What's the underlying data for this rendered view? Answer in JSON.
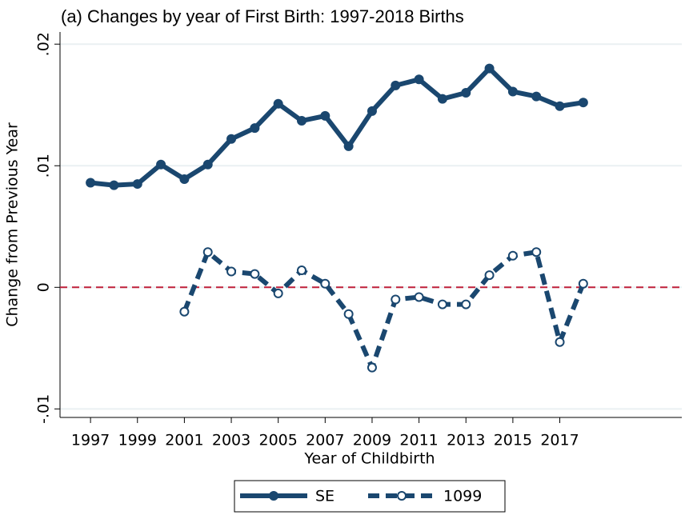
{
  "chart_data": {
    "type": "line",
    "title": "(a) Changes by year of First Birth: 1997-2018 Births",
    "x_label": "Year of Childbirth",
    "y_label": "Change from Previous Year",
    "x": [
      1997,
      1998,
      1999,
      2000,
      2001,
      2002,
      2003,
      2004,
      2005,
      2006,
      2007,
      2008,
      2009,
      2010,
      2011,
      2012,
      2013,
      2014,
      2015,
      2016,
      2017,
      2018
    ],
    "series": [
      {
        "name": "SE",
        "color": "#1a476f",
        "dash": false,
        "marker_fill": "#1a476f",
        "values": [
          0.0086,
          0.0084,
          0.0085,
          0.0101,
          0.0089,
          0.0101,
          0.0122,
          0.0131,
          0.0151,
          0.0137,
          0.0141,
          0.0116,
          0.0145,
          0.0166,
          0.0171,
          0.0155,
          0.016,
          0.018,
          0.0161,
          0.0157,
          0.0149,
          0.0152
        ]
      },
      {
        "name": "1099",
        "color": "#1a476f",
        "dash": true,
        "marker_fill": "#ffffff",
        "values": [
          null,
          null,
          null,
          null,
          -0.002,
          0.0029,
          0.0013,
          0.0011,
          -0.0005,
          0.0014,
          0.0003,
          -0.0022,
          -0.0066,
          -0.001,
          -0.0008,
          -0.0014,
          -0.0014,
          0.001,
          0.0026,
          0.0029,
          -0.0045,
          0.0003
        ]
      }
    ],
    "xlim": [
      1995.7,
      2022.2
    ],
    "xticks": [
      1997,
      1999,
      2001,
      2003,
      2005,
      2007,
      2009,
      2011,
      2013,
      2015,
      2017
    ],
    "ylim": [
      -0.0107,
      0.021
    ],
    "yticks": [
      {
        "value": -0.01,
        "label": "-.01"
      },
      0,
      {
        "value": 0.01,
        "label": ".01"
      },
      {
        "value": 0.02,
        "label": ".02"
      }
    ],
    "grid": true,
    "reference_line": {
      "value": 0,
      "color": "#c0203a"
    },
    "legend": "bottom"
  }
}
